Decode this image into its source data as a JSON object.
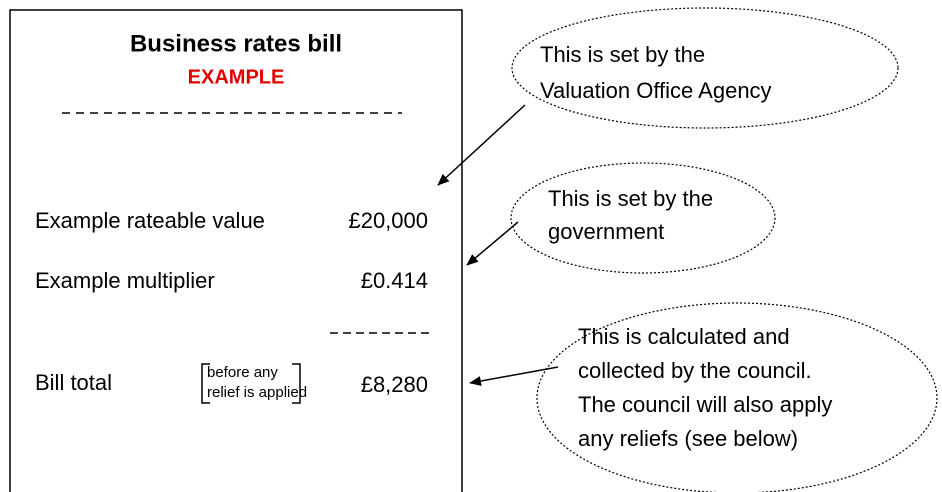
{
  "bill": {
    "title": "Business rates bill",
    "subtitle": "EXAMPLE",
    "rows": [
      {
        "label": "Example rateable value",
        "value": "£20,000"
      },
      {
        "label": "Example multiplier",
        "value": "£0.414"
      }
    ],
    "total": {
      "label": "Bill total",
      "note": [
        "before any",
        "relief is applied"
      ],
      "value": "£8,280"
    }
  },
  "callouts": [
    {
      "lines": [
        "This is set by the",
        "Valuation Office Agency"
      ]
    },
    {
      "lines": [
        "This is set by the",
        "government"
      ]
    },
    {
      "lines": [
        "This is calculated and",
        "collected by the council.",
        "The council will also apply",
        "any reliefs (see below)"
      ]
    }
  ]
}
